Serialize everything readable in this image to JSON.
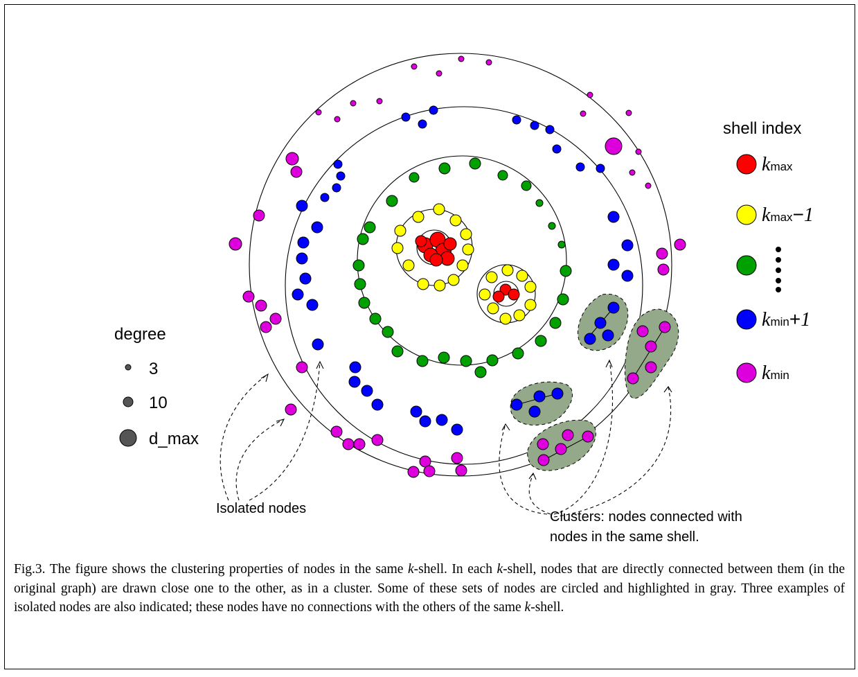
{
  "legend_shell": {
    "title": "shell index",
    "k": "k",
    "entries": [
      {
        "sub": "max",
        "suffix": "",
        "color": "#ff0000"
      },
      {
        "sub": "max",
        "suffix": "−",
        "suffix_num": "1",
        "color": "#ffff00"
      },
      {
        "sub": "",
        "suffix": "",
        "color": "#00a000"
      },
      {
        "sub": "min",
        "suffix": "+",
        "suffix_num": "1",
        "color": "#0000ff"
      },
      {
        "sub": "min",
        "suffix": "",
        "color": "#dd00dd"
      }
    ]
  },
  "legend_degree": {
    "title": "degree",
    "entries": [
      "3",
      "10",
      "d_max"
    ]
  },
  "annotations": {
    "isolated": "Isolated nodes",
    "clusters_line1": "Clusters: nodes connected with",
    "clusters_line2": "nodes in the same shell."
  },
  "caption": {
    "p1": "Fig.3. The figure shows the clustering properties of nodes in the same ",
    "k": "k",
    "p2": "-shell. In each ",
    "p3": "-shell, nodes that are directly connected between them (in the original graph) are drawn close one to the other, as in a cluster. Some of these sets of nodes are circled and highlighted in gray. Three examples of isolated nodes are also indicated; these nodes have no connections with the others of the same ",
    "p4": "-shell."
  },
  "colors": {
    "kmax": "#ff0000",
    "kmax1": "#ffff00",
    "mid": "#00a000",
    "kmin1": "#0000ff",
    "kmin": "#dd00dd",
    "cluster": "#94a88a",
    "degree": "#555555"
  }
}
